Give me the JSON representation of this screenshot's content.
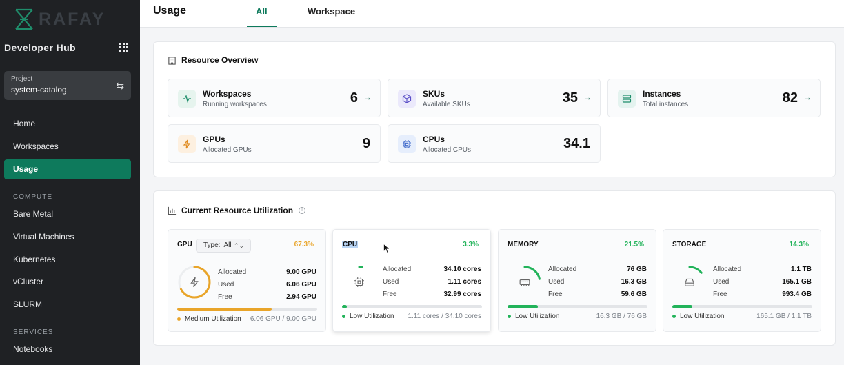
{
  "sidebar": {
    "logo_text": "RAFAY",
    "hub_title": "Developer Hub",
    "project": {
      "label": "Project",
      "value": "system-catalog"
    },
    "nav": [
      {
        "label": "Home"
      },
      {
        "label": "Workspaces"
      },
      {
        "label": "Usage",
        "active": true
      }
    ],
    "compute_label": "COMPUTE",
    "compute": [
      {
        "label": "Bare Metal"
      },
      {
        "label": "Virtual Machines"
      },
      {
        "label": "Kubernetes"
      },
      {
        "label": "vCluster"
      },
      {
        "label": "SLURM"
      }
    ],
    "services_label": "SERVICES",
    "services": [
      {
        "label": "Notebooks"
      }
    ]
  },
  "header": {
    "title": "Usage",
    "tabs": [
      {
        "label": "All",
        "active": true
      },
      {
        "label": "Workspace"
      }
    ]
  },
  "overview": {
    "title": "Resource Overview",
    "cards": [
      {
        "title": "Workspaces",
        "subtitle": "Running workspaces",
        "value": "6",
        "icon": "activity-icon",
        "arrow": "→"
      },
      {
        "title": "SKUs",
        "subtitle": "Available SKUs",
        "value": "35",
        "icon": "cube-icon",
        "arrow": "→"
      },
      {
        "title": "Instances",
        "subtitle": "Total instances",
        "value": "82",
        "icon": "server-icon",
        "arrow": "→"
      },
      {
        "title": "GPUs",
        "subtitle": "Allocated GPUs",
        "value": "9",
        "icon": "lightning-icon"
      },
      {
        "title": "CPUs",
        "subtitle": "Allocated CPUs",
        "value": "34.1",
        "icon": "chip-icon"
      }
    ]
  },
  "utilization": {
    "title": "Current Resource Utilization",
    "info_icon": "i",
    "cards": [
      {
        "name": "GPU",
        "percent": "67.3%",
        "percent_value": 67.3,
        "type_select": "Type:  All",
        "select_caret": "⌃⌄",
        "icon": "lightning-icon",
        "allocated_label": "Allocated",
        "allocated": "9.00 GPU",
        "used_label": "Used",
        "used": "6.06 GPU",
        "free_label": "Free",
        "free": "2.94 GPU",
        "status": "Medium Utilization",
        "summary": "6.06 GPU / 9.00 GPU",
        "color": "#e9a52a"
      },
      {
        "name": "CPU",
        "percent": "3.3%",
        "percent_value": 3.3,
        "icon": "chip-icon",
        "allocated_label": "Allocated",
        "allocated": "34.10 cores",
        "used_label": "Used",
        "used": "1.11 cores",
        "free_label": "Free",
        "free": "32.99 cores",
        "status": "Low Utilization",
        "summary": "1.11 cores / 34.10 cores",
        "color": "#22b35a"
      },
      {
        "name": "MEMORY",
        "percent": "21.5%",
        "percent_value": 21.5,
        "icon": "memory-icon",
        "allocated_label": "Allocated",
        "allocated": "76 GB",
        "used_label": "Used",
        "used": "16.3 GB",
        "free_label": "Free",
        "free": "59.6 GB",
        "status": "Low Utilization",
        "summary": "16.3 GB / 76 GB",
        "color": "#22b35a"
      },
      {
        "name": "STORAGE",
        "percent": "14.3%",
        "percent_value": 14.3,
        "icon": "disk-icon",
        "allocated_label": "Allocated",
        "allocated": "1.1 TB",
        "used_label": "Used",
        "used": "165.1 GB",
        "free_label": "Free",
        "free": "993.4 GB",
        "status": "Low Utilization",
        "summary": "165.1 GB / 1.1 TB",
        "color": "#22b35a"
      }
    ]
  },
  "colors": {
    "brand": "#0e7a5c",
    "medium": "#e9a52a",
    "low": "#22b35a"
  }
}
